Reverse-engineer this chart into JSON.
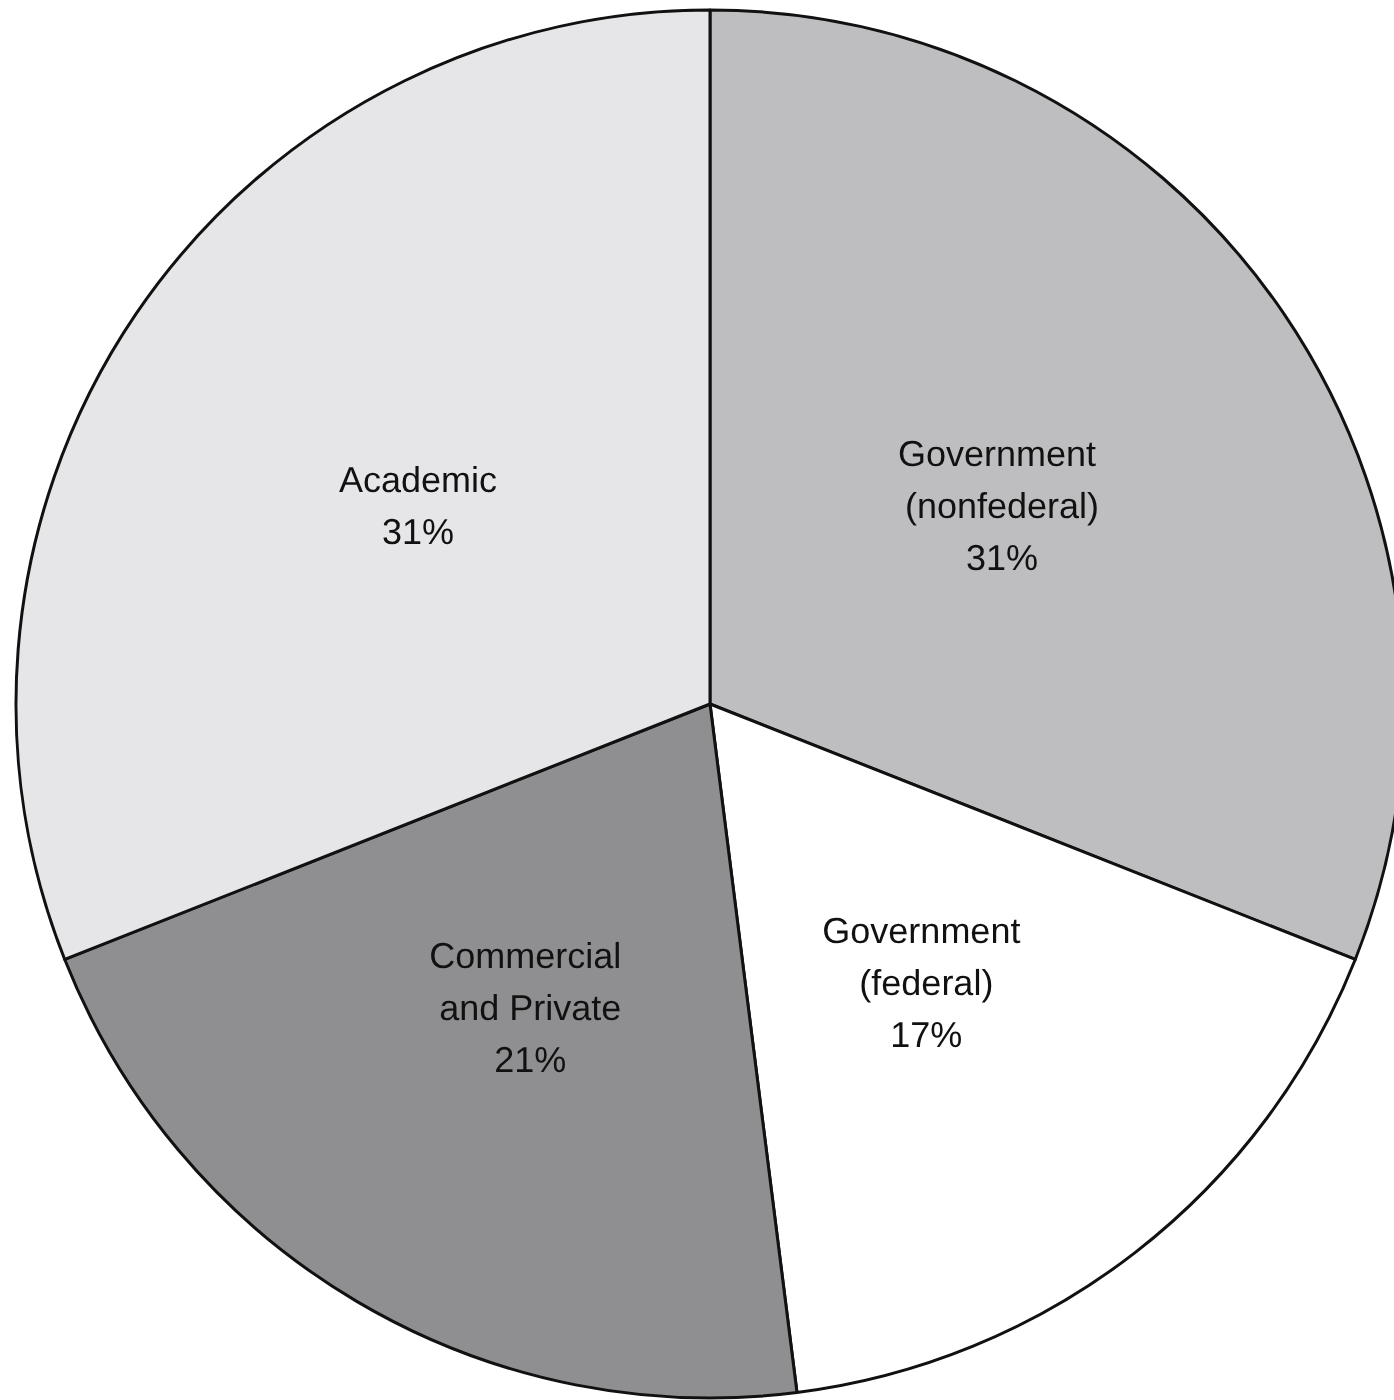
{
  "chart_data": {
    "type": "pie",
    "categories": [
      "Government (nonfederal)",
      "Government (federal)",
      "Commercial and Private",
      "Academic"
    ],
    "values": [
      31,
      17,
      21,
      31
    ],
    "colors": [
      "#bebec0",
      "#ffffff",
      "#8f8f91",
      "#e6e6e8"
    ],
    "value_labels": [
      "31%",
      "17%",
      "21%",
      "31%"
    ],
    "legend": false
  }
}
